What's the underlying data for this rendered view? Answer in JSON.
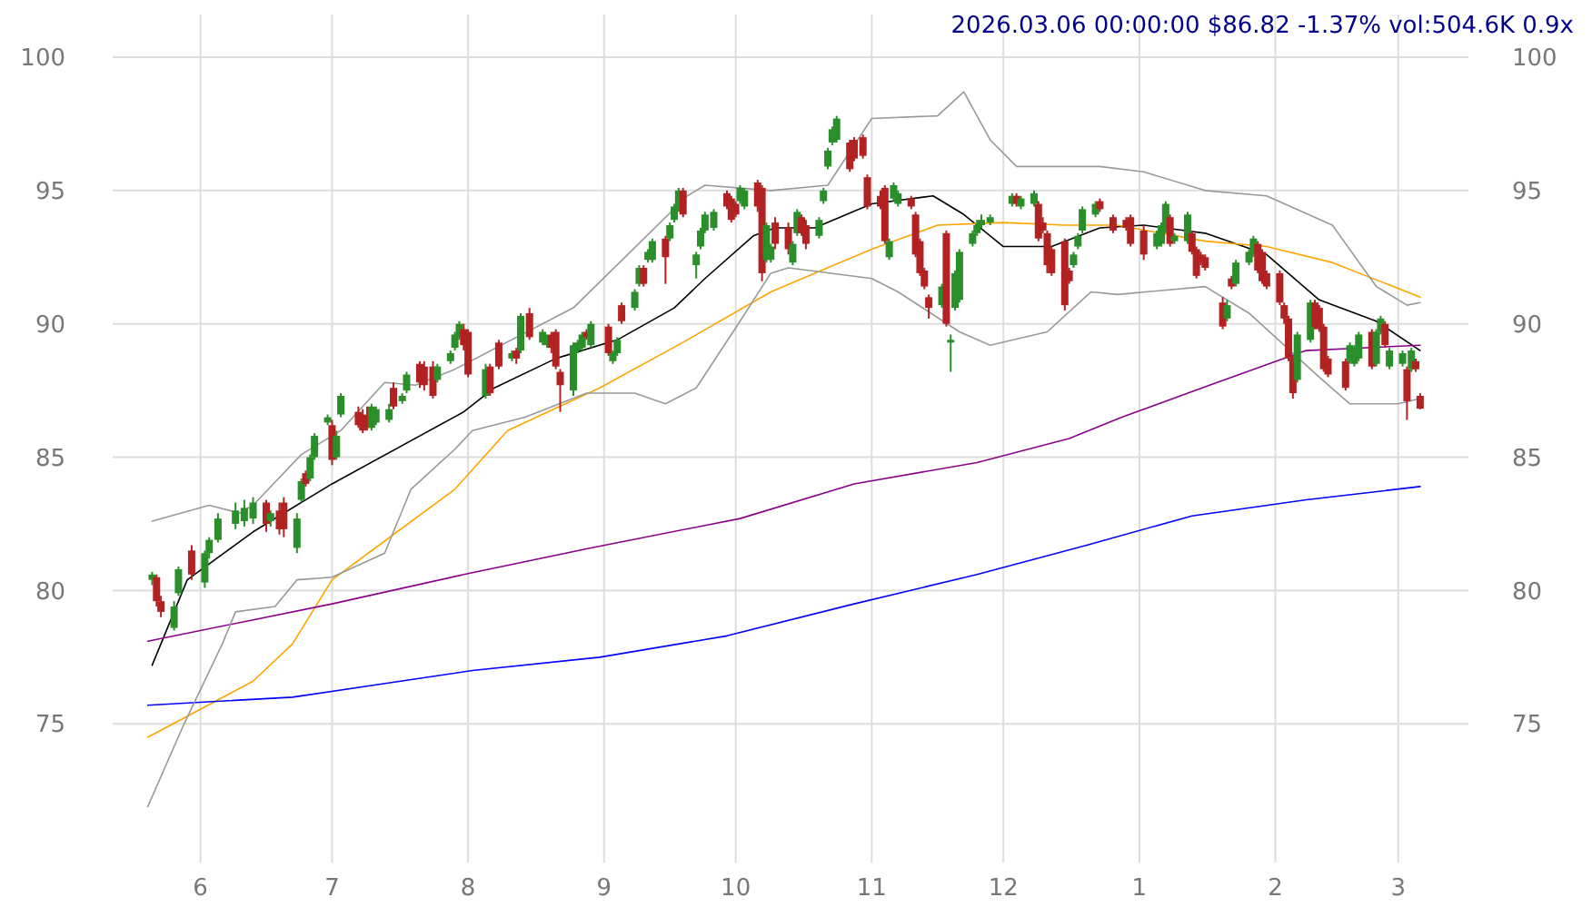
{
  "chart_data": {
    "type": "candlestick",
    "title": "2026.03.06 00:00:00 $86.82 -1.37% vol:504.6K 0.9x",
    "x": [
      "2025-05-21",
      "2025-05-22",
      "2025-05-23",
      "2025-05-26",
      "2025-05-27",
      "2025-05-30",
      "2025-06-02",
      "2025-06-03",
      "2025-06-05",
      "2025-06-09",
      "2025-06-11",
      "2025-06-13",
      "2025-06-16",
      "2025-06-17",
      "2025-06-19",
      "2025-06-20",
      "2025-06-23",
      "2025-06-24",
      "2025-06-25",
      "2025-06-26",
      "2025-06-27",
      "2025-06-30",
      "2025-07-01",
      "2025-07-02",
      "2025-07-03",
      "2025-07-07",
      "2025-07-08",
      "2025-07-09",
      "2025-07-10",
      "2025-07-11",
      "2025-07-14",
      "2025-07-15",
      "2025-07-17",
      "2025-07-18",
      "2025-07-21",
      "2025-07-22",
      "2025-07-24",
      "2025-07-25",
      "2025-07-28",
      "2025-07-29",
      "2025-07-30",
      "2025-07-31",
      "2025-08-01",
      "2025-08-05",
      "2025-08-06",
      "2025-08-08",
      "2025-08-11",
      "2025-08-12",
      "2025-08-13",
      "2025-08-15",
      "2025-08-18",
      "2025-08-19",
      "2025-08-20",
      "2025-08-21",
      "2025-08-22",
      "2025-08-25",
      "2025-08-26",
      "2025-08-27",
      "2025-08-28",
      "2025-08-29",
      "2025-09-02",
      "2025-09-03",
      "2025-09-04",
      "2025-09-05",
      "2025-09-08",
      "2025-09-09",
      "2025-09-10",
      "2025-09-11",
      "2025-09-12",
      "2025-09-15",
      "2025-09-16",
      "2025-09-17",
      "2025-09-18",
      "2025-09-19",
      "2025-09-22",
      "2025-09-23",
      "2025-09-24",
      "2025-09-26",
      "2025-09-29",
      "2025-09-30",
      "2025-10-01",
      "2025-10-02",
      "2025-10-03",
      "2025-10-06",
      "2025-10-07",
      "2025-10-08",
      "2025-10-09",
      "2025-10-10",
      "2025-10-13",
      "2025-10-14",
      "2025-10-15",
      "2025-10-16",
      "2025-10-17",
      "2025-10-20",
      "2025-10-21",
      "2025-10-22",
      "2025-10-23",
      "2025-10-24",
      "2025-10-27",
      "2025-10-28",
      "2025-10-30",
      "2025-10-31",
      "2025-11-03",
      "2025-11-04",
      "2025-11-05",
      "2025-11-06",
      "2025-11-07",
      "2025-11-10",
      "2025-11-11",
      "2025-11-12",
      "2025-11-13",
      "2025-11-14",
      "2025-11-17",
      "2025-11-18",
      "2025-11-19",
      "2025-11-20",
      "2025-11-21",
      "2025-11-24",
      "2025-11-25",
      "2025-11-26",
      "2025-11-28",
      "2025-12-03",
      "2025-12-04",
      "2025-12-05",
      "2025-12-08",
      "2025-12-09",
      "2025-12-10",
      "2025-12-11",
      "2025-12-12",
      "2025-12-15",
      "2025-12-16",
      "2025-12-17",
      "2025-12-18",
      "2025-12-19",
      "2025-12-22",
      "2025-12-23",
      "2025-12-26",
      "2025-12-29",
      "2025-12-30",
      "2026-01-02",
      "2026-01-05",
      "2026-01-06",
      "2026-01-07",
      "2026-01-08",
      "2026-01-09",
      "2026-01-12",
      "2026-01-13",
      "2026-01-14",
      "2026-01-15",
      "2026-01-16",
      "2026-01-20",
      "2026-01-21",
      "2026-01-22",
      "2026-01-23",
      "2026-01-26",
      "2026-01-27",
      "2026-01-28",
      "2026-01-29",
      "2026-01-30",
      "2026-02-02",
      "2026-02-03",
      "2026-02-04",
      "2026-02-05",
      "2026-02-06",
      "2026-02-09",
      "2026-02-10",
      "2026-02-11",
      "2026-02-12",
      "2026-02-13",
      "2026-02-17",
      "2026-02-18",
      "2026-02-19",
      "2026-02-20",
      "2026-02-23",
      "2026-02-24",
      "2026-02-25",
      "2026-02-26",
      "2026-02-27",
      "2026-03-02",
      "2026-03-03",
      "2026-03-04",
      "2026-03-05",
      "2026-03-06"
    ],
    "ohlc": [
      [
        80.4,
        80.7,
        80.2,
        80.6
      ],
      [
        80.5,
        80.6,
        79.4,
        79.6
      ],
      [
        79.6,
        79.8,
        79.0,
        79.2
      ],
      [
        78.6,
        79.6,
        78.5,
        79.4
      ],
      [
        79.9,
        80.9,
        79.8,
        80.8
      ],
      [
        81.5,
        81.7,
        80.4,
        80.6
      ],
      [
        80.3,
        81.5,
        80.1,
        81.4
      ],
      [
        81.4,
        82.0,
        81.2,
        81.9
      ],
      [
        81.9,
        82.9,
        81.8,
        82.7
      ],
      [
        82.5,
        83.3,
        82.3,
        83.0
      ],
      [
        82.6,
        83.4,
        82.4,
        83.1
      ],
      [
        82.7,
        83.5,
        82.5,
        83.3
      ],
      [
        83.3,
        83.4,
        82.2,
        82.5
      ],
      [
        82.6,
        83.0,
        82.4,
        82.9
      ],
      [
        83.0,
        83.3,
        82.1,
        82.3
      ],
      [
        83.3,
        83.5,
        82.0,
        82.3
      ],
      [
        81.6,
        82.9,
        81.4,
        82.7
      ],
      [
        83.4,
        84.2,
        83.3,
        84.1
      ],
      [
        84.4,
        84.5,
        83.9,
        84.0
      ],
      [
        84.2,
        85.1,
        84.1,
        85.0
      ],
      [
        85.0,
        85.9,
        84.9,
        85.8
      ],
      [
        86.3,
        86.6,
        86.2,
        86.5
      ],
      [
        86.2,
        86.4,
        84.7,
        84.9
      ],
      [
        85.0,
        86.0,
        84.9,
        85.8
      ],
      [
        86.6,
        87.4,
        86.5,
        87.3
      ],
      [
        86.7,
        86.9,
        86.1,
        86.2
      ],
      [
        86.6,
        86.8,
        85.9,
        86.0
      ],
      [
        86.5,
        86.9,
        86.0,
        86.1
      ],
      [
        86.1,
        87.0,
        86.0,
        86.9
      ],
      [
        86.3,
        86.9,
        86.2,
        86.8
      ],
      [
        86.4,
        87.0,
        86.3,
        86.8
      ],
      [
        87.6,
        87.8,
        86.8,
        86.9
      ],
      [
        87.1,
        87.4,
        87.0,
        87.3
      ],
      [
        87.5,
        88.2,
        87.4,
        88.1
      ],
      [
        88.5,
        88.6,
        87.6,
        87.8
      ],
      [
        88.4,
        88.6,
        87.5,
        87.7
      ],
      [
        88.4,
        88.6,
        87.2,
        87.3
      ],
      [
        87.9,
        88.5,
        87.8,
        88.4
      ],
      [
        88.6,
        89.0,
        88.5,
        88.9
      ],
      [
        89.1,
        89.7,
        89.0,
        89.6
      ],
      [
        89.5,
        90.1,
        89.4,
        90.0
      ],
      [
        89.8,
        90.0,
        89.0,
        89.2
      ],
      [
        89.7,
        89.8,
        88.0,
        88.1
      ],
      [
        87.3,
        88.5,
        87.2,
        88.3
      ],
      [
        88.4,
        88.5,
        87.3,
        87.4
      ],
      [
        89.3,
        89.4,
        88.3,
        88.4
      ],
      [
        88.7,
        89.0,
        88.6,
        88.9
      ],
      [
        89.0,
        89.1,
        88.5,
        88.7
      ],
      [
        89.0,
        90.4,
        88.9,
        90.3
      ],
      [
        90.4,
        90.6,
        89.4,
        89.5
      ],
      [
        89.3,
        89.8,
        89.2,
        89.7
      ],
      [
        89.2,
        89.6,
        89.1,
        89.5
      ],
      [
        89.6,
        89.7,
        88.9,
        89.1
      ],
      [
        89.7,
        89.8,
        88.3,
        88.4
      ],
      [
        88.2,
        88.3,
        86.7,
        87.7
      ],
      [
        87.5,
        89.3,
        87.3,
        89.2
      ],
      [
        89.0,
        89.4,
        88.9,
        89.3
      ],
      [
        89.1,
        89.7,
        89.0,
        89.6
      ],
      [
        89.7,
        89.8,
        89.4,
        89.5
      ],
      [
        89.2,
        90.1,
        89.1,
        90.0
      ],
      [
        89.9,
        90.0,
        88.8,
        88.9
      ],
      [
        88.6,
        89.0,
        88.5,
        88.9
      ],
      [
        88.9,
        89.5,
        88.8,
        89.4
      ],
      [
        90.7,
        90.8,
        90.0,
        90.1
      ],
      [
        90.6,
        91.3,
        90.5,
        91.2
      ],
      [
        91.5,
        92.2,
        91.4,
        92.1
      ],
      [
        92.1,
        92.2,
        91.4,
        91.5
      ],
      [
        92.4,
        92.8,
        92.3,
        92.7
      ],
      [
        92.4,
        93.2,
        92.3,
        93.1
      ],
      [
        93.2,
        93.3,
        91.5,
        92.5
      ],
      [
        93.2,
        93.8,
        93.1,
        93.7
      ],
      [
        93.9,
        94.5,
        93.8,
        94.4
      ],
      [
        94.3,
        95.1,
        94.2,
        95.0
      ],
      [
        95.0,
        95.1,
        94.0,
        94.1
      ],
      [
        92.2,
        92.7,
        91.7,
        92.6
      ],
      [
        92.9,
        93.6,
        92.8,
        93.5
      ],
      [
        93.5,
        94.2,
        93.4,
        94.1
      ],
      [
        93.6,
        94.3,
        93.5,
        94.2
      ],
      [
        94.9,
        95.0,
        94.3,
        94.4
      ],
      [
        94.7,
        94.8,
        93.8,
        93.9
      ],
      [
        94.5,
        94.6,
        94.0,
        94.1
      ],
      [
        94.6,
        95.2,
        94.5,
        95.1
      ],
      [
        94.4,
        95.1,
        94.3,
        95.0
      ],
      [
        95.3,
        95.4,
        94.2,
        94.4
      ],
      [
        95.1,
        95.2,
        91.6,
        91.9
      ],
      [
        92.4,
        93.8,
        92.3,
        93.7
      ],
      [
        92.4,
        93.0,
        92.3,
        92.9
      ],
      [
        93.8,
        94.0,
        92.8,
        93.0
      ],
      [
        93.6,
        93.8,
        92.6,
        92.8
      ],
      [
        92.3,
        93.1,
        92.2,
        93.0
      ],
      [
        93.4,
        94.3,
        93.3,
        94.2
      ],
      [
        94.0,
        94.1,
        93.3,
        93.4
      ],
      [
        93.7,
        93.9,
        92.8,
        93.0
      ],
      [
        93.3,
        94.0,
        93.2,
        93.9
      ],
      [
        94.6,
        95.1,
        94.5,
        95.0
      ],
      [
        95.9,
        96.6,
        95.8,
        96.5
      ],
      [
        96.8,
        97.4,
        96.7,
        97.3
      ],
      [
        96.9,
        97.8,
        96.8,
        97.7
      ],
      [
        96.8,
        96.9,
        95.7,
        95.8
      ],
      [
        96.9,
        97.0,
        96.1,
        96.2
      ],
      [
        97.0,
        97.1,
        96.2,
        96.3
      ],
      [
        95.5,
        95.6,
        94.3,
        94.4
      ],
      [
        94.8,
        95.0,
        94.3,
        94.4
      ],
      [
        95.1,
        95.2,
        93.0,
        93.1
      ],
      [
        92.5,
        93.2,
        92.4,
        93.1
      ],
      [
        94.7,
        95.3,
        94.6,
        95.2
      ],
      [
        94.5,
        95.0,
        94.4,
        94.9
      ],
      [
        94.7,
        94.8,
        94.3,
        94.4
      ],
      [
        94.1,
        94.2,
        92.5,
        92.6
      ],
      [
        93.1,
        93.2,
        91.8,
        91.9
      ],
      [
        92.0,
        92.1,
        91.3,
        91.4
      ],
      [
        91.0,
        91.1,
        90.2,
        90.6
      ],
      [
        90.7,
        91.5,
        90.6,
        91.4
      ],
      [
        93.4,
        93.5,
        89.9,
        90.0
      ],
      [
        89.3,
        89.6,
        88.2,
        89.4
      ],
      [
        90.6,
        92.0,
        90.5,
        91.9
      ],
      [
        90.9,
        92.8,
        90.8,
        92.7
      ],
      [
        93.0,
        93.5,
        92.9,
        93.4
      ],
      [
        93.4,
        93.9,
        93.3,
        93.7
      ],
      [
        93.7,
        94.1,
        93.6,
        93.9
      ],
      [
        93.8,
        94.1,
        93.7,
        94.0
      ],
      [
        94.5,
        94.9,
        94.4,
        94.8
      ],
      [
        94.8,
        94.9,
        94.4,
        94.5
      ],
      [
        94.4,
        94.8,
        94.3,
        94.7
      ],
      [
        94.5,
        95.0,
        94.4,
        94.9
      ],
      [
        94.5,
        94.6,
        93.1,
        93.2
      ],
      [
        93.8,
        94.0,
        93.4,
        93.5
      ],
      [
        93.4,
        93.5,
        91.9,
        92.2
      ],
      [
        92.8,
        92.9,
        91.8,
        91.9
      ],
      [
        93.1,
        93.2,
        90.5,
        90.7
      ],
      [
        92.0,
        92.1,
        91.5,
        91.6
      ],
      [
        92.2,
        92.7,
        92.1,
        92.6
      ],
      [
        92.9,
        93.4,
        92.8,
        93.3
      ],
      [
        93.5,
        94.4,
        93.4,
        94.3
      ],
      [
        94.1,
        94.6,
        94.0,
        94.5
      ],
      [
        94.6,
        94.7,
        94.2,
        94.3
      ],
      [
        94.0,
        94.1,
        93.4,
        93.5
      ],
      [
        93.9,
        94.0,
        93.5,
        93.6
      ],
      [
        94.0,
        94.1,
        92.9,
        93.0
      ],
      [
        93.5,
        93.7,
        92.4,
        92.6
      ],
      [
        92.9,
        93.5,
        92.8,
        93.4
      ],
      [
        93.0,
        93.8,
        92.9,
        93.7
      ],
      [
        93.5,
        94.6,
        93.4,
        94.5
      ],
      [
        94.0,
        94.1,
        92.9,
        93.0
      ],
      [
        93.1,
        93.4,
        93.0,
        93.3
      ],
      [
        93.1,
        94.2,
        93.0,
        94.1
      ],
      [
        93.4,
        93.5,
        92.6,
        92.7
      ],
      [
        92.8,
        92.9,
        91.7,
        91.8
      ],
      [
        92.6,
        92.7,
        92.2,
        92.3
      ],
      [
        92.5,
        92.6,
        92.0,
        92.1
      ],
      [
        90.8,
        91.0,
        89.8,
        89.9
      ],
      [
        90.2,
        90.9,
        90.1,
        90.7
      ],
      [
        91.7,
        91.8,
        91.3,
        91.4
      ],
      [
        91.5,
        92.4,
        91.4,
        92.3
      ],
      [
        92.3,
        92.8,
        92.2,
        92.7
      ],
      [
        92.6,
        93.3,
        92.5,
        93.2
      ],
      [
        93.0,
        93.1,
        91.9,
        92.0
      ],
      [
        92.7,
        92.8,
        91.5,
        91.6
      ],
      [
        91.9,
        92.0,
        91.3,
        91.4
      ],
      [
        91.9,
        92.0,
        90.7,
        90.8
      ],
      [
        90.7,
        90.8,
        90.0,
        90.2
      ],
      [
        90.2,
        90.3,
        88.6,
        88.7
      ],
      [
        88.7,
        88.8,
        87.2,
        87.4
      ],
      [
        87.9,
        89.7,
        87.8,
        89.6
      ],
      [
        89.4,
        90.9,
        89.3,
        90.8
      ],
      [
        90.8,
        90.9,
        89.8,
        89.9
      ],
      [
        90.6,
        90.7,
        89.7,
        89.8
      ],
      [
        89.9,
        90.0,
        88.2,
        88.3
      ],
      [
        88.7,
        88.8,
        88.0,
        88.1
      ],
      [
        88.6,
        88.7,
        87.5,
        87.6
      ],
      [
        88.6,
        89.3,
        88.5,
        89.2
      ],
      [
        88.5,
        89.2,
        88.4,
        89.1
      ],
      [
        88.7,
        89.7,
        88.6,
        89.6
      ],
      [
        89.7,
        89.8,
        88.3,
        88.4
      ],
      [
        88.5,
        89.8,
        88.4,
        89.7
      ],
      [
        89.7,
        90.3,
        89.6,
        90.2
      ],
      [
        90.0,
        90.1,
        89.1,
        89.2
      ],
      [
        88.4,
        89.1,
        88.3,
        89.0
      ],
      [
        88.5,
        89.0,
        88.4,
        88.9
      ],
      [
        88.3,
        88.4,
        86.4,
        87.1
      ],
      [
        88.3,
        89.1,
        88.2,
        89.0
      ],
      [
        88.6,
        88.7,
        88.2,
        88.3
      ],
      [
        87.3,
        87.4,
        86.8,
        86.82
      ]
    ],
    "series": [
      {
        "type": "line",
        "color": "#000000",
        "x": [
          "2025-05-21",
          "2025-05-29",
          "2025-06-13",
          "2025-07-01",
          "2025-07-31",
          "2025-08-07",
          "2025-08-21",
          "2025-09-04",
          "2025-09-17",
          "2025-09-24",
          "2025-10-05",
          "2025-10-10",
          "2025-10-19",
          "2025-11-01",
          "2025-11-15",
          "2025-11-22",
          "2025-12-01",
          "2025-12-12",
          "2025-12-23",
          "2026-01-02",
          "2026-01-16",
          "2026-01-30",
          "2026-02-11",
          "2026-02-24",
          "2026-03-06"
        ],
        "values": [
          77.2,
          80.4,
          82.2,
          84.0,
          86.7,
          87.6,
          88.7,
          89.4,
          90.6,
          91.7,
          93.3,
          93.6,
          93.6,
          94.5,
          94.8,
          94.1,
          92.9,
          92.9,
          93.6,
          93.7,
          93.4,
          92.6,
          90.9,
          90.1,
          89.0
        ]
      },
      {
        "type": "line",
        "color": "#ffa500",
        "x": [
          "2025-05-20",
          "2025-06-13",
          "2025-06-22",
          "2025-07-01",
          "2025-07-15",
          "2025-07-29",
          "2025-08-10",
          "2025-08-31",
          "2025-09-20",
          "2025-10-09",
          "2025-10-19",
          "2025-11-01",
          "2025-11-16",
          "2025-12-01",
          "2025-12-15",
          "2025-12-27",
          "2026-01-16",
          "2026-01-30",
          "2026-02-14",
          "2026-03-06"
        ],
        "values": [
          74.5,
          76.6,
          78.0,
          80.4,
          82.1,
          83.8,
          86.0,
          87.6,
          89.4,
          91.2,
          91.9,
          92.8,
          93.7,
          93.8,
          93.7,
          93.7,
          93.1,
          92.9,
          92.3,
          91.0
        ]
      },
      {
        "type": "line",
        "color": "#8b008b",
        "x": [
          "2025-05-20",
          "2025-07-01",
          "2025-07-31",
          "2025-08-29",
          "2025-10-02",
          "2025-10-28",
          "2025-11-25",
          "2025-12-16",
          "2025-12-28",
          "2026-01-17",
          "2026-02-08",
          "2026-03-06"
        ],
        "values": [
          78.1,
          79.5,
          80.6,
          81.6,
          82.7,
          84.0,
          84.8,
          85.7,
          86.5,
          87.7,
          89.0,
          89.2
        ]
      },
      {
        "type": "line",
        "color": "#0000ff",
        "x": [
          "2025-05-20",
          "2025-06-22",
          "2025-08-02",
          "2025-08-31",
          "2025-09-29",
          "2025-10-28",
          "2025-11-25",
          "2025-12-20",
          "2026-01-13",
          "2026-02-08",
          "2026-03-06"
        ],
        "values": [
          75.7,
          76.0,
          77.0,
          77.5,
          78.3,
          79.5,
          80.6,
          81.7,
          82.8,
          83.4,
          83.9
        ]
      },
      {
        "type": "line",
        "color": "#999999",
        "x": [
          "2025-05-21",
          "2025-06-03",
          "2025-06-10",
          "2025-06-13",
          "2025-06-24",
          "2025-07-03",
          "2025-07-13",
          "2025-07-20",
          "2025-07-29",
          "2025-08-25",
          "2025-09-20",
          "2025-09-24",
          "2025-10-09",
          "2025-10-22",
          "2025-11-01",
          "2025-11-16",
          "2025-11-22",
          "2025-11-28",
          "2025-12-04",
          "2025-12-23",
          "2026-01-02",
          "2026-01-16",
          "2026-01-30",
          "2026-02-14",
          "2026-02-24",
          "2026-03-03",
          "2026-03-06"
        ],
        "values": [
          82.6,
          83.2,
          82.9,
          83.2,
          85.1,
          86.0,
          87.8,
          87.7,
          88.3,
          90.6,
          94.8,
          95.2,
          95.0,
          95.2,
          97.7,
          97.8,
          98.7,
          96.9,
          95.9,
          95.9,
          95.7,
          95.0,
          94.8,
          93.7,
          91.4,
          90.7,
          90.8
        ]
      },
      {
        "type": "line",
        "color": "#999999",
        "x": [
          "2025-05-20",
          "2025-05-28",
          "2025-06-06",
          "2025-06-09",
          "2025-06-18",
          "2025-06-23",
          "2025-07-01",
          "2025-07-13",
          "2025-07-19",
          "2025-07-29",
          "2025-08-02",
          "2025-08-14",
          "2025-08-28",
          "2025-09-08",
          "2025-09-15",
          "2025-09-22",
          "2025-10-02",
          "2025-10-09",
          "2025-10-13",
          "2025-11-01",
          "2025-11-07",
          "2025-11-21",
          "2025-11-28",
          "2025-12-11",
          "2025-12-21",
          "2025-12-27",
          "2026-01-16",
          "2026-01-26",
          "2026-02-11",
          "2026-02-18",
          "2026-03-01",
          "2026-03-06"
        ],
        "values": [
          71.9,
          74.9,
          78.0,
          79.2,
          79.4,
          80.4,
          80.5,
          81.4,
          83.8,
          85.3,
          86.0,
          86.5,
          87.4,
          87.4,
          87.0,
          87.6,
          90.1,
          91.9,
          92.1,
          91.7,
          91.2,
          89.7,
          89.2,
          89.7,
          91.2,
          91.1,
          91.4,
          90.4,
          88.0,
          87.0,
          87.0,
          87.2
        ]
      }
    ],
    "xlim": [
      "2025-05-12",
      "2026-03-17"
    ],
    "xticks": [
      {
        "value": "2025-06-01",
        "label": "6"
      },
      {
        "value": "2025-07-01",
        "label": "7"
      },
      {
        "value": "2025-08-01",
        "label": "8"
      },
      {
        "value": "2025-09-01",
        "label": "9"
      },
      {
        "value": "2025-10-01",
        "label": "10"
      },
      {
        "value": "2025-11-01",
        "label": "11"
      },
      {
        "value": "2025-12-01",
        "label": "12"
      },
      {
        "value": "2026-01-01",
        "label": "1"
      },
      {
        "value": "2026-02-01",
        "label": "2"
      },
      {
        "value": "2026-03-01",
        "label": "3"
      }
    ],
    "ylim": [
      69.8,
      101.6
    ],
    "yticks": [
      75,
      80,
      85,
      90,
      95,
      100
    ],
    "y2lim": [
      69.8,
      101.6
    ],
    "y2ticks": [
      75,
      80,
      85,
      90,
      95,
      100
    ],
    "grid": true
  }
}
